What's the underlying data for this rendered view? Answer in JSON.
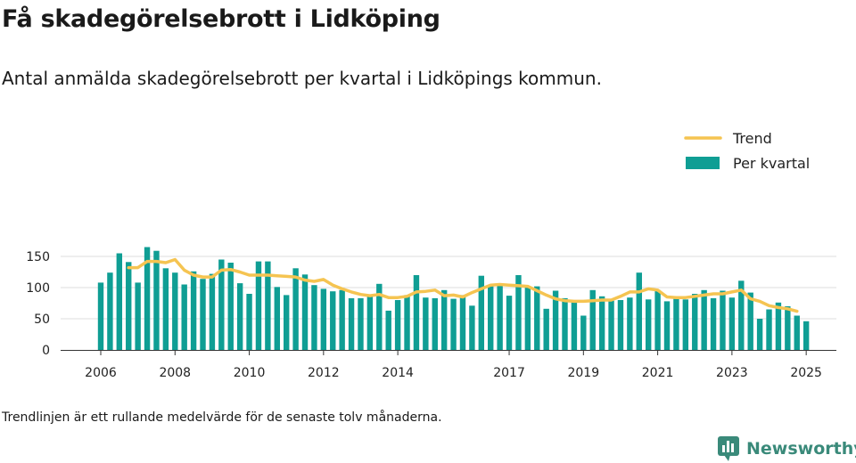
{
  "header": {
    "title": "Få skadegörelsebrott i Lidköping",
    "subtitle": "Antal anmälda skadegörelsebrott per kvartal i Lidköpings kommun."
  },
  "footer": {
    "note": "Trendlinjen är ett rullande medelvärde för de senaste tolv månaderna.",
    "brand": "Newsworthy"
  },
  "colors": {
    "bars": "#0f9e94",
    "trend": "#f5c451",
    "grid": "#dddddd",
    "brand": "#3a8a7a"
  },
  "chart_data": {
    "type": "bar",
    "title": "Få skadegörelsebrott i Lidköping",
    "subtitle": "Antal anmälda skadegörelsebrott per kvartal i Lidköpings kommun.",
    "xlabel": "",
    "ylabel": "",
    "ylim": [
      0,
      175
    ],
    "yticks": [
      0,
      50,
      100,
      150
    ],
    "grid": true,
    "legend_position": "top-right",
    "x_start": "2006 Q1",
    "categories": [
      "2006 Q1",
      "2006 Q2",
      "2006 Q3",
      "2006 Q4",
      "2007 Q1",
      "2007 Q2",
      "2007 Q3",
      "2007 Q4",
      "2008 Q1",
      "2008 Q2",
      "2008 Q3",
      "2008 Q4",
      "2009 Q1",
      "2009 Q2",
      "2009 Q3",
      "2009 Q4",
      "2010 Q1",
      "2010 Q2",
      "2010 Q3",
      "2010 Q4",
      "2011 Q1",
      "2011 Q2",
      "2011 Q3",
      "2011 Q4",
      "2012 Q1",
      "2012 Q2",
      "2012 Q3",
      "2012 Q4",
      "2013 Q1",
      "2013 Q2",
      "2013 Q3",
      "2013 Q4",
      "2014 Q1",
      "2014 Q2",
      "2014 Q3",
      "2014 Q4",
      "2015 Q1",
      "2015 Q2",
      "2015 Q3",
      "2015 Q4",
      "2016 Q1",
      "2016 Q2",
      "2016 Q3",
      "2016 Q4",
      "2017 Q1",
      "2017 Q2",
      "2017 Q3",
      "2017 Q4",
      "2018 Q1",
      "2018 Q2",
      "2018 Q3",
      "2018 Q4",
      "2019 Q1",
      "2019 Q2",
      "2019 Q3",
      "2019 Q4",
      "2020 Q1",
      "2020 Q2",
      "2020 Q3",
      "2020 Q4",
      "2021 Q1",
      "2021 Q2",
      "2021 Q3",
      "2021 Q4",
      "2022 Q1",
      "2022 Q2",
      "2022 Q3",
      "2022 Q4",
      "2023 Q1",
      "2023 Q2",
      "2023 Q3",
      "2023 Q4",
      "2024 Q1",
      "2024 Q2",
      "2024 Q3",
      "2024 Q4",
      "2025 Q1"
    ],
    "x_ticks": [
      {
        "label": "2006",
        "index": 0
      },
      {
        "label": "2008",
        "index": 8
      },
      {
        "label": "2010",
        "index": 16
      },
      {
        "label": "2012",
        "index": 24
      },
      {
        "label": "2014",
        "index": 32
      },
      {
        "label": "2017",
        "index": 44
      },
      {
        "label": "2019",
        "index": 52
      },
      {
        "label": "2021",
        "index": 60
      },
      {
        "label": "2023",
        "index": 68
      },
      {
        "label": "2025",
        "index": 76
      }
    ],
    "series": [
      {
        "name": "Per kvartal",
        "type": "bar",
        "values": [
          108,
          124,
          155,
          141,
          108,
          165,
          159,
          131,
          124,
          105,
          126,
          114,
          122,
          145,
          140,
          107,
          90,
          142,
          142,
          101,
          88,
          131,
          121,
          104,
          98,
          94,
          96,
          83,
          83,
          87,
          106,
          63,
          80,
          88,
          120,
          84,
          83,
          96,
          82,
          88,
          71,
          119,
          104,
          107,
          87,
          120,
          100,
          102,
          66,
          95,
          83,
          79,
          55,
          96,
          86,
          79,
          80,
          84,
          124,
          81,
          96,
          78,
          82,
          81,
          90,
          96,
          83,
          95,
          84,
          111,
          92,
          50,
          65,
          76,
          70,
          55,
          46
        ]
      },
      {
        "name": "Trend",
        "type": "line",
        "values": [
          null,
          null,
          null,
          132,
          132,
          142,
          142,
          140,
          145,
          128,
          120,
          117,
          117,
          128,
          129,
          125,
          120,
          120,
          120,
          119,
          118,
          117,
          112,
          110,
          113,
          104,
          98,
          93,
          89,
          87,
          89,
          84,
          84,
          86,
          93,
          94,
          96,
          87,
          88,
          85,
          92,
          98,
          104,
          105,
          104,
          103,
          102,
          95,
          88,
          82,
          79,
          78,
          78,
          79,
          80,
          80,
          86,
          93,
          93,
          98,
          96,
          85,
          84,
          84,
          86,
          88,
          90,
          90,
          93,
          96,
          82,
          78,
          71,
          68,
          66,
          62,
          null
        ]
      }
    ]
  }
}
